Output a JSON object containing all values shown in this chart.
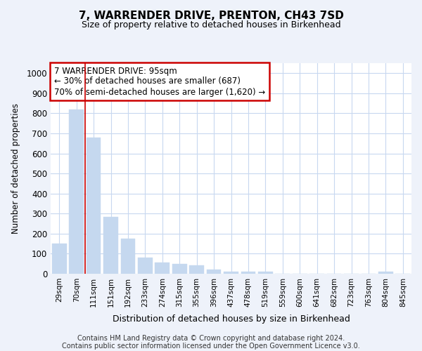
{
  "title": "7, WARRENDER DRIVE, PRENTON, CH43 7SD",
  "subtitle": "Size of property relative to detached houses in Birkenhead",
  "xlabel": "Distribution of detached houses by size in Birkenhead",
  "ylabel": "Number of detached properties",
  "categories": [
    "29sqm",
    "70sqm",
    "111sqm",
    "151sqm",
    "192sqm",
    "233sqm",
    "274sqm",
    "315sqm",
    "355sqm",
    "396sqm",
    "437sqm",
    "478sqm",
    "519sqm",
    "559sqm",
    "600sqm",
    "641sqm",
    "682sqm",
    "723sqm",
    "763sqm",
    "804sqm",
    "845sqm"
  ],
  "values": [
    150,
    820,
    680,
    285,
    175,
    80,
    55,
    50,
    42,
    20,
    12,
    12,
    10,
    0,
    0,
    0,
    0,
    0,
    0,
    12,
    0
  ],
  "bar_color": "#c5d8ef",
  "bar_edge_color": "#c5d8ef",
  "vline_x": 2.0,
  "vline_color": "#cc0000",
  "annotation_text": "7 WARRENDER DRIVE: 95sqm\n← 30% of detached houses are smaller (687)\n70% of semi-detached houses are larger (1,620) →",
  "annotation_box_color": "#ffffff",
  "annotation_box_edge": "#cc0000",
  "ylim": [
    0,
    1050
  ],
  "yticks": [
    0,
    100,
    200,
    300,
    400,
    500,
    600,
    700,
    800,
    900,
    1000
  ],
  "footer": "Contains HM Land Registry data © Crown copyright and database right 2024.\nContains public sector information licensed under the Open Government Licence v3.0.",
  "bg_color": "#eef2fa",
  "plot_bg": "#ffffff",
  "grid_color": "#c8d8f0",
  "title_fontsize": 11,
  "subtitle_fontsize": 9
}
